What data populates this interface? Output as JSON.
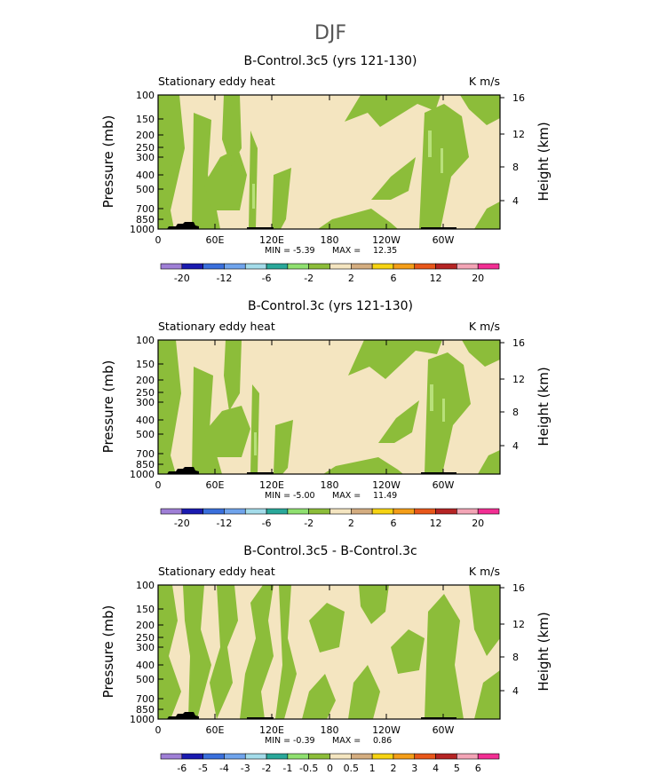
{
  "figure_title": "DJF",
  "chart_data": [
    {
      "type": "heatmap",
      "title": "B-Control.3c5 (yrs 121-130)",
      "subtitle_left": "Stationary eddy heat",
      "subtitle_right": "K m/s",
      "ylabel": "Pressure (mb)",
      "y2label": "Height (km)",
      "y_ticks": [
        "100",
        "150",
        "200",
        "250",
        "300",
        "400",
        "500",
        "700",
        "850",
        "1000"
      ],
      "y2_ticks": [
        "16",
        "12",
        "8",
        "4"
      ],
      "x_ticks": [
        "0",
        "60E",
        "120E",
        "180",
        "120W",
        "60W"
      ],
      "stats": {
        "min_label": "MIN =",
        "min": "-5.39",
        "max_label": "MAX =",
        "max": "12.35"
      },
      "colorbar": {
        "tick_labels": [
          "-20",
          "-12",
          "-6",
          "-2",
          "2",
          "6",
          "12",
          "20"
        ]
      }
    },
    {
      "type": "heatmap",
      "title": "B-Control.3c (yrs 121-130)",
      "subtitle_left": "Stationary eddy heat",
      "subtitle_right": "K m/s",
      "ylabel": "Pressure (mb)",
      "y2label": "Height (km)",
      "y_ticks": [
        "100",
        "150",
        "200",
        "250",
        "300",
        "400",
        "500",
        "700",
        "850",
        "1000"
      ],
      "y2_ticks": [
        "16",
        "12",
        "8",
        "4"
      ],
      "x_ticks": [
        "0",
        "60E",
        "120E",
        "180",
        "120W",
        "60W"
      ],
      "stats": {
        "min_label": "MIN =",
        "min": "-5.00",
        "max_label": "MAX =",
        "max": "11.49"
      },
      "colorbar": {
        "tick_labels": [
          "-20",
          "-12",
          "-6",
          "-2",
          "2",
          "6",
          "12",
          "20"
        ]
      }
    },
    {
      "type": "heatmap",
      "title": "B-Control.3c5 - B-Control.3c",
      "subtitle_left": "Stationary eddy heat",
      "subtitle_right": "K m/s",
      "ylabel": "Pressure (mb)",
      "y2label": "Height (km)",
      "y_ticks": [
        "100",
        "150",
        "200",
        "250",
        "300",
        "400",
        "500",
        "700",
        "850",
        "1000"
      ],
      "y2_ticks": [
        "16",
        "12",
        "8",
        "4"
      ],
      "x_ticks": [
        "0",
        "60E",
        "120E",
        "180",
        "120W",
        "60W"
      ],
      "stats": {
        "min_label": "MIN =",
        "min": "-0.39",
        "max_label": "MAX =",
        "max": "0.86"
      },
      "colorbar": {
        "tick_labels": [
          "-6",
          "-5",
          "-4",
          "-3",
          "-2",
          "-1",
          "-0.5",
          "0",
          "0.5",
          "1",
          "2",
          "3",
          "4",
          "5",
          "6"
        ]
      }
    }
  ],
  "colors": {
    "green": "#8cbd3a",
    "tan": "#f4e5c0",
    "lightgreen": "#b8e07a",
    "palette": [
      "#9f7fd6",
      "#1a1ab0",
      "#3a6fdc",
      "#70a4ec",
      "#a4dcea",
      "#2aa89a",
      "#8fe070",
      "#8cbd3a",
      "#f4e5c0",
      "#d4ad80",
      "#f6d313",
      "#f49e18",
      "#e8571a",
      "#b52424",
      "#f3a5b6",
      "#f22f93"
    ]
  }
}
